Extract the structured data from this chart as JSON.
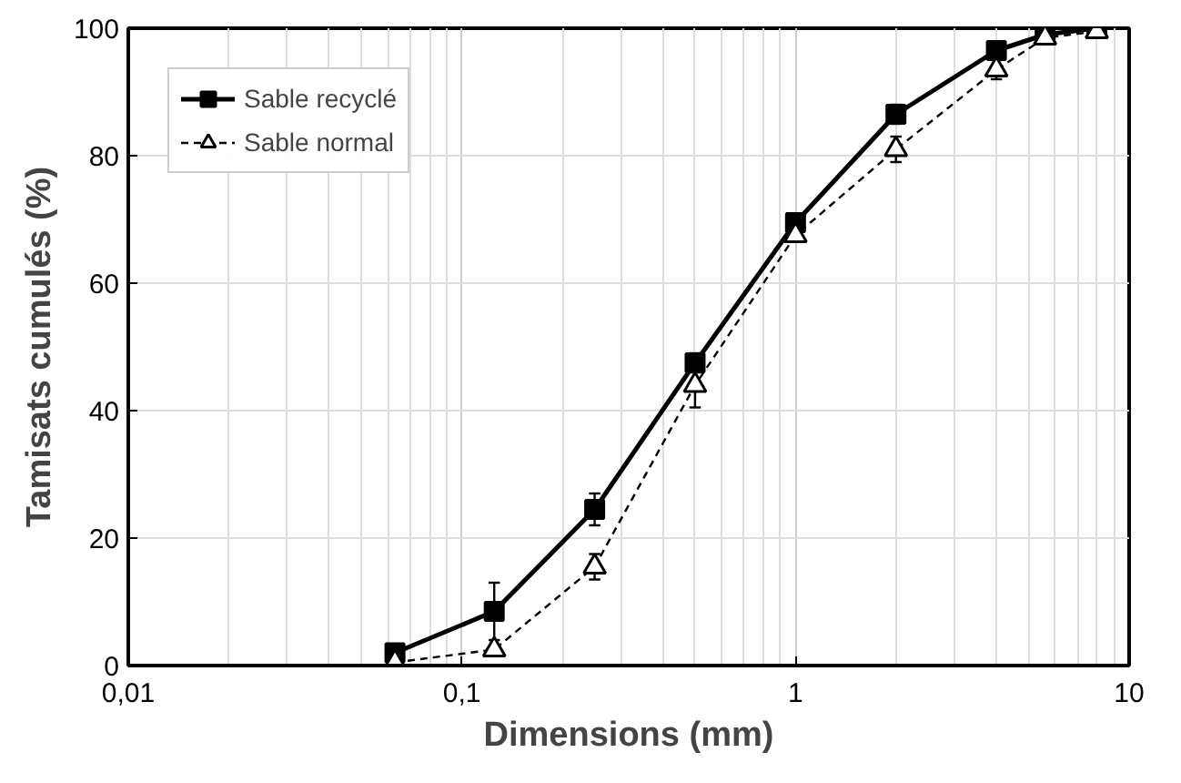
{
  "chart_data": {
    "type": "line",
    "xlabel": "Dimensions (mm)",
    "ylabel": "Tamisats cumulés (%)",
    "x": [
      0.063,
      0.125,
      0.25,
      0.5,
      1,
      2,
      4,
      5.6,
      8
    ],
    "series": [
      {
        "name": "Sable recyclé",
        "color": "#000000",
        "marker": "square",
        "line_style": "solid",
        "values": [
          2,
          8.5,
          24.5,
          47.5,
          69.5,
          86.5,
          96.5,
          99,
          100
        ],
        "errors": [
          null,
          [
            4,
            13
          ],
          2.5,
          1.5,
          1,
          1.5,
          null,
          null,
          null
        ]
      },
      {
        "name": "Sable normal",
        "color": "#000000",
        "marker": "triangle",
        "line_style": "dashed",
        "values": [
          0.5,
          2.5,
          15.5,
          44,
          67.5,
          81,
          93.5,
          98.5,
          99.5
        ],
        "errors": [
          null,
          null,
          2,
          3.5,
          1,
          2,
          1.5,
          null,
          null
        ]
      }
    ],
    "log": "x",
    "xlim": [
      0.01,
      10
    ],
    "xticks": [
      {
        "value": 0.01,
        "label": "0,01"
      },
      {
        "value": 0.1,
        "label": "0,1"
      },
      1,
      10
    ],
    "ylim": [
      0,
      100
    ],
    "yticks": [
      0,
      20,
      40,
      60,
      80,
      100
    ],
    "grid": true,
    "legend": "top left"
  }
}
